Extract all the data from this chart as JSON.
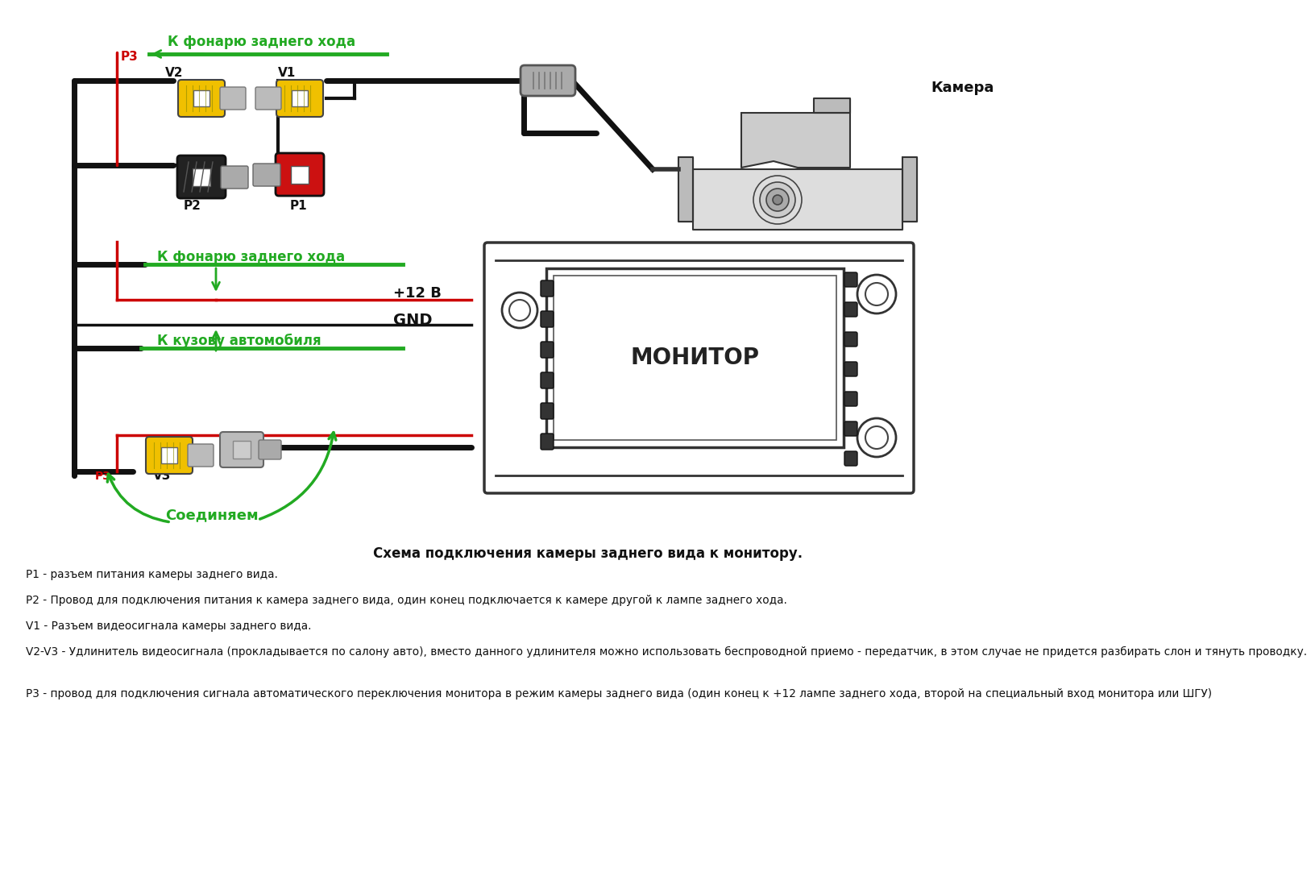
{
  "bg_color": "#ffffff",
  "title_diagram": "Схема подключения камеры заднего вида к монитору.",
  "label_camera": "Камера",
  "label_monitor": "МОНИТОР",
  "label_k_fonarju_top": "К фонарю заднего хода",
  "label_k_fonarju_mid": "К фонарю заднего хода",
  "label_k_kuzovu": "К кузову автомобиля",
  "label_soedinyaem": "Соединяем",
  "label_12v": "+12 В",
  "label_gnd": "GND",
  "text_p1": "P1 - разъем питания камеры заднего вида.",
  "text_p2": "P2 - Провод для подключения питания к камера заднего вида, один конец подключается к камере другой к лампе заднего хода.",
  "text_v1": "V1 - Разъем видеосигнала камеры заднего вида.",
  "text_v2v3": "V2-V3 - Удлинитель видеосигнала (прокладывается по салону авто), вместо данного удлинителя можно использовать беспроводной приемо - передатчик, в этом случае не придется разбирать слон и тянуть проводку.",
  "text_p3": "P3 - провод для подключения сигнала автоматического переключения монитора в режим камеры заднего вида (один конец к +12 лампе заднего хода, второй на специальный вход монитора или ШГУ)",
  "green": "#22aa22",
  "red": "#cc0000",
  "black": "#111111",
  "dark": "#222222",
  "yellow": "#f0c000",
  "gray_light": "#cccccc",
  "gray_med": "#999999",
  "gray_dark": "#555555"
}
